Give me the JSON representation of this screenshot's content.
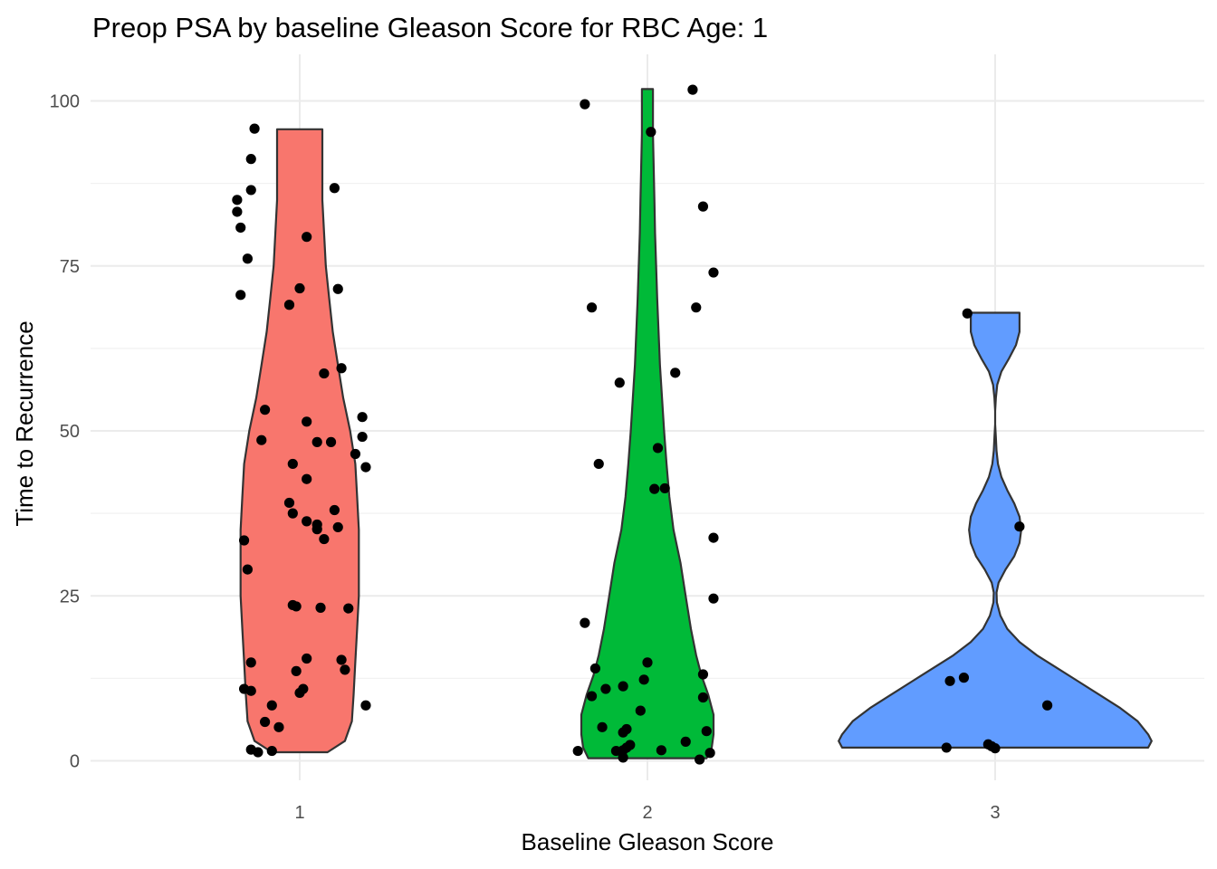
{
  "chart_data": {
    "type": "violin",
    "title": "Preop PSA by baseline Gleason Score for RBC Age: 1",
    "xlabel": "Baseline Gleason Score",
    "ylabel": "Time to Recurrence",
    "categories": [
      "1",
      "2",
      "3"
    ],
    "ylim": [
      -3.5,
      107
    ],
    "yticks": [
      0,
      25,
      50,
      75,
      100
    ],
    "grid": true,
    "legend": "none",
    "colors": {
      "1": "#F8766D",
      "2": "#00BA38",
      "3": "#619CFF"
    },
    "violins": [
      {
        "category": "1",
        "outline": [
          [
            1.3,
            0.08
          ],
          [
            3,
            0.13
          ],
          [
            6,
            0.15
          ],
          [
            10,
            0.155
          ],
          [
            15,
            0.16
          ],
          [
            20,
            0.165
          ],
          [
            25,
            0.17
          ],
          [
            30,
            0.17
          ],
          [
            35,
            0.17
          ],
          [
            40,
            0.165
          ],
          [
            45,
            0.16
          ],
          [
            50,
            0.145
          ],
          [
            55,
            0.125
          ],
          [
            60,
            0.11
          ],
          [
            65,
            0.095
          ],
          [
            70,
            0.085
          ],
          [
            75,
            0.075
          ],
          [
            80,
            0.07
          ],
          [
            85,
            0.065
          ],
          [
            90,
            0.065
          ],
          [
            93,
            0.065
          ],
          [
            95.7,
            0.065
          ]
        ]
      },
      {
        "category": "2",
        "outline": [
          [
            0.4,
            0.17
          ],
          [
            2,
            0.185
          ],
          [
            4,
            0.19
          ],
          [
            7,
            0.19
          ],
          [
            10,
            0.175
          ],
          [
            13,
            0.155
          ],
          [
            16,
            0.14
          ],
          [
            20,
            0.125
          ],
          [
            25,
            0.11
          ],
          [
            30,
            0.095
          ],
          [
            35,
            0.075
          ],
          [
            40,
            0.063
          ],
          [
            45,
            0.055
          ],
          [
            50,
            0.048
          ],
          [
            55,
            0.042
          ],
          [
            60,
            0.036
          ],
          [
            65,
            0.032
          ],
          [
            70,
            0.028
          ],
          [
            75,
            0.025
          ],
          [
            80,
            0.022
          ],
          [
            85,
            0.02
          ],
          [
            90,
            0.018
          ],
          [
            95,
            0.016
          ],
          [
            101.8,
            0.016
          ]
        ]
      },
      {
        "category": "3",
        "outline": [
          [
            2,
            0.44
          ],
          [
            3,
            0.45
          ],
          [
            4,
            0.44
          ],
          [
            6,
            0.41
          ],
          [
            8,
            0.36
          ],
          [
            10,
            0.3
          ],
          [
            12,
            0.24
          ],
          [
            14,
            0.18
          ],
          [
            16,
            0.12
          ],
          [
            18,
            0.07
          ],
          [
            20,
            0.035
          ],
          [
            22,
            0.015
          ],
          [
            24,
            0.005
          ],
          [
            25.5,
            0.004
          ],
          [
            27,
            0.01
          ],
          [
            29,
            0.03
          ],
          [
            31,
            0.055
          ],
          [
            33,
            0.07
          ],
          [
            35,
            0.075
          ],
          [
            37,
            0.07
          ],
          [
            39,
            0.055
          ],
          [
            41,
            0.035
          ],
          [
            43,
            0.018
          ],
          [
            45,
            0.008
          ],
          [
            47,
            0.004
          ],
          [
            49,
            0.002
          ],
          [
            51,
            0.0
          ],
          [
            53,
            0.0
          ],
          [
            55,
            0.002
          ],
          [
            57,
            0.006
          ],
          [
            59,
            0.018
          ],
          [
            61,
            0.04
          ],
          [
            63,
            0.06
          ],
          [
            65,
            0.07
          ],
          [
            66.5,
            0.07
          ],
          [
            67.9,
            0.07
          ]
        ]
      }
    ],
    "points": [
      [
        0.87,
        95.8
      ],
      [
        0.86,
        91.2
      ],
      [
        0.86,
        86.5
      ],
      [
        1.1,
        86.8
      ],
      [
        0.82,
        85
      ],
      [
        0.82,
        83.2
      ],
      [
        0.83,
        80.8
      ],
      [
        1.02,
        79.4
      ],
      [
        0.85,
        76.1
      ],
      [
        1.0,
        71.6
      ],
      [
        1.11,
        71.5
      ],
      [
        0.83,
        70.6
      ],
      [
        0.97,
        69.1
      ],
      [
        1.12,
        59.5
      ],
      [
        1.07,
        58.7
      ],
      [
        0.9,
        53.2
      ],
      [
        1.18,
        52.1
      ],
      [
        1.02,
        51.4
      ],
      [
        1.18,
        49.1
      ],
      [
        0.89,
        48.6
      ],
      [
        1.05,
        48.3
      ],
      [
        1.09,
        48.3
      ],
      [
        1.16,
        46.5
      ],
      [
        1.19,
        44.5
      ],
      [
        0.98,
        45.0
      ],
      [
        1.02,
        42.7
      ],
      [
        0.97,
        39.1
      ],
      [
        1.1,
        38.0
      ],
      [
        0.98,
        37.5
      ],
      [
        1.02,
        36.3
      ],
      [
        1.05,
        35.8
      ],
      [
        1.11,
        35.4
      ],
      [
        1.05,
        35.1
      ],
      [
        1.07,
        33.6
      ],
      [
        0.84,
        33.4
      ],
      [
        0.85,
        29.0
      ],
      [
        0.98,
        23.6
      ],
      [
        0.99,
        23.4
      ],
      [
        1.06,
        23.2
      ],
      [
        1.14,
        23.1
      ],
      [
        1.12,
        15.3
      ],
      [
        1.02,
        15.5
      ],
      [
        0.86,
        14.9
      ],
      [
        1.13,
        13.8
      ],
      [
        0.99,
        13.6
      ],
      [
        0.84,
        10.9
      ],
      [
        0.86,
        10.6
      ],
      [
        1.0,
        10.3
      ],
      [
        1.01,
        10.9
      ],
      [
        1.19,
        8.4
      ],
      [
        0.92,
        8.4
      ],
      [
        0.9,
        5.9
      ],
      [
        0.94,
        5.1
      ],
      [
        0.86,
        1.7
      ],
      [
        0.88,
        1.3
      ],
      [
        0.92,
        1.5
      ],
      [
        1.82,
        99.5
      ],
      [
        2.13,
        101.7
      ],
      [
        2.01,
        95.3
      ],
      [
        2.16,
        84
      ],
      [
        2.19,
        74
      ],
      [
        1.84,
        68.7
      ],
      [
        2.14,
        68.7
      ],
      [
        2.08,
        58.8
      ],
      [
        1.92,
        57.3
      ],
      [
        2.03,
        47.4
      ],
      [
        1.86,
        45
      ],
      [
        2.02,
        41.2
      ],
      [
        2.05,
        41.3
      ],
      [
        2.19,
        33.8
      ],
      [
        2.19,
        24.6
      ],
      [
        1.82,
        20.9
      ],
      [
        2.0,
        14.9
      ],
      [
        1.85,
        14.0
      ],
      [
        2.16,
        13.1
      ],
      [
        1.99,
        12.3
      ],
      [
        1.88,
        10.9
      ],
      [
        1.93,
        11.3
      ],
      [
        1.84,
        9.8
      ],
      [
        2.16,
        9.6
      ],
      [
        1.98,
        7.6
      ],
      [
        1.87,
        5.1
      ],
      [
        2.17,
        4.5
      ],
      [
        1.93,
        4.3
      ],
      [
        1.94,
        4.8
      ],
      [
        2.11,
        2.9
      ],
      [
        1.95,
        2.4
      ],
      [
        1.93,
        1.6
      ],
      [
        1.91,
        1.5
      ],
      [
        1.8,
        1.5
      ],
      [
        2.04,
        1.6
      ],
      [
        2.18,
        1.2
      ],
      [
        1.93,
        0.5
      ],
      [
        2.15,
        0.2
      ],
      [
        1.94,
        2.0
      ],
      [
        2.92,
        67.8
      ],
      [
        3.07,
        35.5
      ],
      [
        3.15,
        8.4
      ],
      [
        2.87,
        12.1
      ],
      [
        2.91,
        12.6
      ],
      [
        2.86,
        2.0
      ],
      [
        2.98,
        2.5
      ],
      [
        2.99,
        2.2
      ],
      [
        3.0,
        1.9
      ]
    ]
  }
}
